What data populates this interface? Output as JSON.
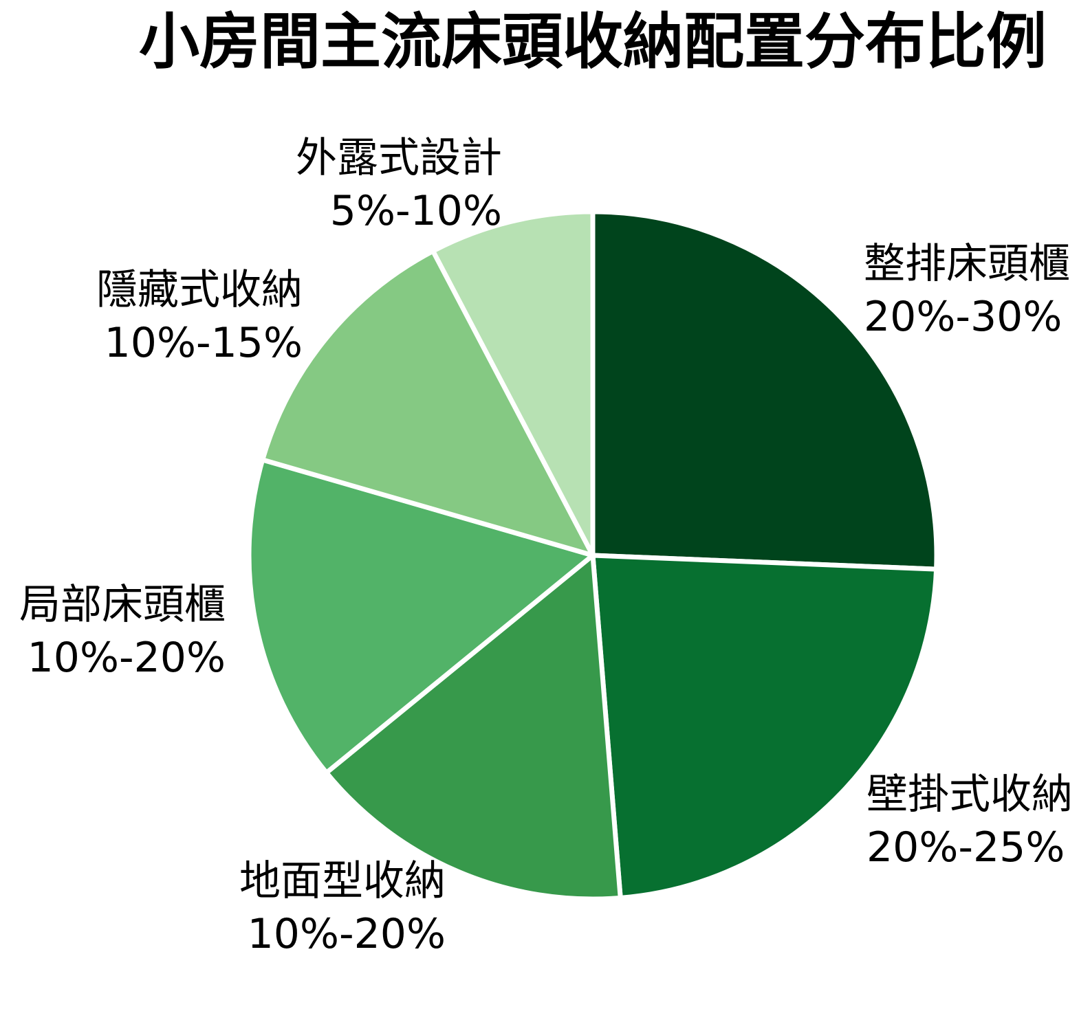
{
  "title": "小房間主流床頭收納配置分布比例",
  "chart_data": {
    "type": "pie",
    "title": "小房間主流床頭收納配置分布比例",
    "direction": "clockwise",
    "start_angle": "12-o'clock",
    "legend_position": "none",
    "labels_position": "outside",
    "gap_color": "#ffffff",
    "slices": [
      {
        "label": "整排床頭櫃",
        "value_label": "20%-30%",
        "value": 25,
        "color": "#00441c"
      },
      {
        "label": "壁掛式收納",
        "value_label": "20%-25%",
        "value": 22.5,
        "color": "#077030"
      },
      {
        "label": "地面型收納",
        "value_label": "10%-20%",
        "value": 15,
        "color": "#37994b"
      },
      {
        "label": "局部床頭櫃",
        "value_label": "10%-20%",
        "value": 15,
        "color": "#52b368"
      },
      {
        "label": "隱藏式收納",
        "value_label": "10%-15%",
        "value": 12.5,
        "color": "#85c983"
      },
      {
        "label": "外露式設計",
        "value_label": "5%-10%",
        "value": 7.5,
        "color": "#b7e1b3"
      }
    ]
  }
}
